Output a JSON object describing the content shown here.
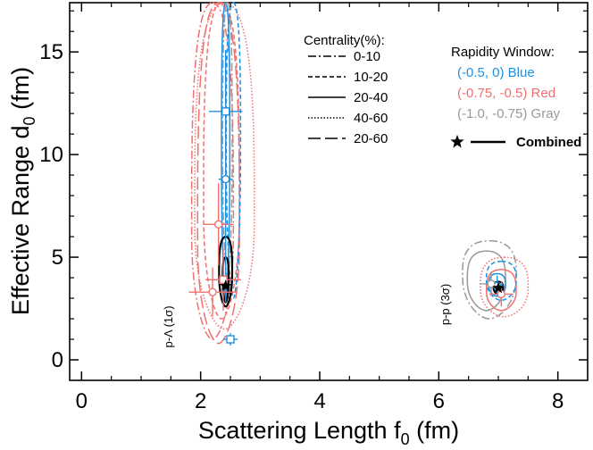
{
  "chart_data": {
    "type": "scatter",
    "title": "",
    "xlabel_main": "Scattering Length f",
    "xlabel_sub": "0",
    "xlabel_unit": " (fm)",
    "ylabel_main": "Effective Range d",
    "ylabel_sub": "0",
    "ylabel_unit": " (fm)",
    "xlim": [
      -0.2,
      8.5
    ],
    "ylim": [
      -1.0,
      17.4
    ],
    "x_ticks": [
      0,
      2,
      4,
      6,
      8
    ],
    "y_ticks": [
      0,
      5,
      10,
      15
    ],
    "x_tick_labels": [
      "0",
      "2",
      "4",
      "6",
      "8"
    ],
    "y_tick_labels": [
      "0",
      "5",
      "10",
      "15"
    ],
    "grid": false,
    "legend_centrality": {
      "title": "Centrality(%):",
      "entries": [
        {
          "label": "0-10",
          "style": "dash-dot"
        },
        {
          "label": "10-20",
          "style": "short-dash"
        },
        {
          "label": "20-40",
          "style": "solid"
        },
        {
          "label": "40-60",
          "style": "dotted"
        },
        {
          "label": "20-60",
          "style": "long-dash"
        }
      ]
    },
    "legend_rapidity": {
      "title": "Rapidity Window:",
      "entries": [
        {
          "label": "(-0.5, 0) Blue",
          "color": "#1e90e0"
        },
        {
          "label": "(-0.75, -0.5) Red",
          "color": "#f07070"
        },
        {
          "label": "(-1.0, -0.75) Gray",
          "color": "#999999"
        }
      ],
      "combined": {
        "label": "Combined",
        "color": "#000000"
      }
    },
    "annotations": [
      {
        "text": "p-Λ (1σ)",
        "x": 1.45,
        "y": 1.7
      },
      {
        "text": "p-p (3σ)",
        "x": 6.2,
        "y": 3.2
      }
    ],
    "series": [
      {
        "system": "p-Lambda",
        "color": "blue",
        "marker": "square",
        "points": [
          {
            "x": 2.42,
            "y": 12.1,
            "xerr": 0.28,
            "yerr": 3.0
          },
          {
            "x": 2.5,
            "y": 1.0,
            "xerr": 0.12,
            "yerr": 0.3
          }
        ]
      },
      {
        "system": "p-Lambda",
        "color": "blue",
        "marker": "circle",
        "points": [
          {
            "x": 2.42,
            "y": 8.8,
            "xerr": 0.12,
            "yerr": 6.0
          }
        ]
      },
      {
        "system": "p-Lambda",
        "color": "red",
        "marker": "circle",
        "points": [
          {
            "x": 2.3,
            "y": 6.6,
            "xerr": 0.25,
            "yerr": 2.0
          },
          {
            "x": 2.2,
            "y": 3.3,
            "xerr": 0.4,
            "yerr": 1.2
          }
        ]
      },
      {
        "system": "p-Lambda",
        "color": "red",
        "marker": "square",
        "points": [
          {
            "x": 2.38,
            "y": 3.9,
            "xerr": 0.3,
            "yerr": 1.5
          }
        ]
      },
      {
        "system": "p-Lambda",
        "color": "black",
        "marker": "star",
        "points": [
          {
            "x": 2.42,
            "y": 3.6
          }
        ]
      },
      {
        "system": "p-p",
        "color": "blue",
        "marker": "circle",
        "points": [
          {
            "x": 6.98,
            "y": 3.6,
            "xerr": 0.12,
            "yerr": 0.5
          }
        ]
      },
      {
        "system": "p-p",
        "color": "red",
        "marker": "circle",
        "points": [
          {
            "x": 7.05,
            "y": 3.2,
            "xerr": 0.2,
            "yerr": 0.6
          }
        ]
      },
      {
        "system": "p-p",
        "color": "gray",
        "marker": "circle",
        "points": [
          {
            "x": 6.88,
            "y": 3.7,
            "xerr": 0.2,
            "yerr": 0.6
          }
        ]
      },
      {
        "system": "p-p",
        "color": "black",
        "marker": "star",
        "points": [
          {
            "x": 7.0,
            "y": 3.5
          }
        ]
      }
    ],
    "contours": [
      {
        "system": "p-Lambda",
        "color": "red",
        "style": "long-dash",
        "cx": 2.3,
        "cy": 5.5,
        "rx": 0.35,
        "top": 17.4,
        "bottom": 0.8
      },
      {
        "system": "p-Lambda",
        "color": "red",
        "style": "dotted",
        "cx": 2.4,
        "cy": 6.5,
        "rx": 0.5,
        "top": 17.4,
        "bottom": 1.5
      },
      {
        "system": "p-Lambda",
        "color": "red",
        "style": "dash-dot",
        "cx": 2.2,
        "cy": 6.0,
        "rx": 0.35,
        "top": 17.4,
        "bottom": 1.0
      },
      {
        "system": "p-Lambda",
        "color": "red",
        "style": "short-dash",
        "cx": 2.35,
        "cy": 7.0,
        "rx": 0.3,
        "top": 17.4,
        "bottom": 2.0
      },
      {
        "system": "p-Lambda",
        "color": "blue",
        "style": "short-dash",
        "cx": 2.55,
        "cy": 10.0,
        "rx": 0.12,
        "top": 17.4,
        "bottom": 3.0
      },
      {
        "system": "p-Lambda",
        "color": "blue",
        "style": "solid",
        "cx": 2.42,
        "cy": 10.0,
        "rx": 0.07,
        "top": 17.4,
        "bottom": 3.0
      },
      {
        "system": "p-Lambda",
        "color": "gray",
        "style": "dash-dot",
        "cx": 2.45,
        "cy": 10.0,
        "rx": 0.08,
        "top": 17.4,
        "bottom": 4.0
      },
      {
        "system": "p-Lambda",
        "color": "black",
        "style": "solid",
        "cx": 2.42,
        "cy": 4.15,
        "rx": 0.11,
        "top": 6.0,
        "bottom": 2.6
      },
      {
        "system": "p-Lambda",
        "color": "black",
        "style": "solid",
        "cx": 2.42,
        "cy": 3.9,
        "rx": 0.05,
        "top": 5.0,
        "bottom": 2.8
      },
      {
        "system": "p-p",
        "color": "gray",
        "style": "dash-dot",
        "cx": 6.85,
        "cy": 4.0,
        "rx": 0.45,
        "top": 5.8,
        "bottom": 2.0
      },
      {
        "system": "p-p",
        "color": "gray",
        "style": "solid",
        "cx": 6.8,
        "cy": 3.8,
        "rx": 0.32,
        "top": 5.3,
        "bottom": 2.4
      },
      {
        "system": "p-p",
        "color": "red",
        "style": "dotted",
        "cx": 7.1,
        "cy": 3.4,
        "rx": 0.4,
        "top": 5.0,
        "bottom": 2.1
      },
      {
        "system": "p-p",
        "color": "red",
        "style": "solid",
        "cx": 7.05,
        "cy": 3.3,
        "rx": 0.25,
        "top": 4.4,
        "bottom": 2.4
      },
      {
        "system": "p-p",
        "color": "blue",
        "style": "short-dash",
        "cx": 7.05,
        "cy": 3.8,
        "rx": 0.25,
        "top": 4.8,
        "bottom": 2.9
      },
      {
        "system": "p-p",
        "color": "blue",
        "style": "solid",
        "cx": 6.98,
        "cy": 3.6,
        "rx": 0.14,
        "top": 4.2,
        "bottom": 3.1
      },
      {
        "system": "p-p",
        "color": "black",
        "style": "solid",
        "cx": 7.0,
        "cy": 3.5,
        "rx": 0.08,
        "top": 3.8,
        "bottom": 3.2
      }
    ],
    "colors": {
      "blue": "#1e90e0",
      "red": "#f07070",
      "gray": "#999999",
      "black": "#000000"
    }
  }
}
